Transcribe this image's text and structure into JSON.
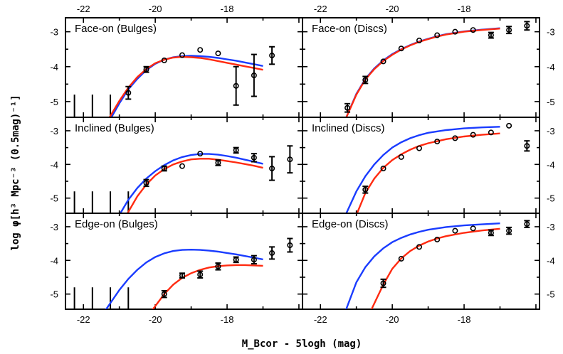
{
  "chart_data": {
    "type": "scatter",
    "xlabel": "M_Bcor - 5logh (mag)",
    "ylabel": "log φ[h³ Mpc⁻³ (0.5mag)⁻¹]",
    "xlim": [
      -22.5,
      -15.9
    ],
    "ylim": [
      -5.45,
      -2.6
    ],
    "x_ticks": [
      -22,
      -20,
      -18
    ],
    "y_ticks": [
      -5,
      -4,
      -3
    ],
    "colors": {
      "model_blue": "#1a3cff",
      "model_red": "#ff2a10"
    },
    "panels": [
      {
        "title": "Face-on (Bulges)",
        "points": [
          {
            "x": -20.75,
            "y": -4.75,
            "err": 0.18
          },
          {
            "x": -20.25,
            "y": -4.08,
            "err": 0.08
          },
          {
            "x": -19.75,
            "y": -3.82,
            "err": 0.05
          },
          {
            "x": -19.25,
            "y": -3.67,
            "err": 0.04
          },
          {
            "x": -18.75,
            "y": -3.52,
            "err": 0.04
          },
          {
            "x": -18.25,
            "y": -3.62,
            "err": 0.06
          },
          {
            "x": -17.75,
            "y": -4.55,
            "err": 0.55
          },
          {
            "x": -17.25,
            "y": -4.25,
            "err": 0.6
          },
          {
            "x": -16.75,
            "y": -3.68,
            "err": 0.25
          }
        ],
        "upper_limits": [
          -22.25,
          -21.75,
          -21.25
        ],
        "blue_curve": [
          [
            -21.25,
            -5.5
          ],
          [
            -21.0,
            -5.05
          ],
          [
            -20.75,
            -4.65
          ],
          [
            -20.5,
            -4.35
          ],
          [
            -20.25,
            -4.1
          ],
          [
            -20.0,
            -3.92
          ],
          [
            -19.75,
            -3.8
          ],
          [
            -19.5,
            -3.73
          ],
          [
            -19.25,
            -3.7
          ],
          [
            -19.0,
            -3.69
          ],
          [
            -18.75,
            -3.7
          ],
          [
            -18.5,
            -3.72
          ],
          [
            -18.25,
            -3.75
          ],
          [
            -18.0,
            -3.79
          ],
          [
            -17.75,
            -3.83
          ],
          [
            -17.5,
            -3.88
          ],
          [
            -17.25,
            -3.93
          ],
          [
            -17.0,
            -3.98
          ]
        ],
        "red_curve": [
          [
            -21.3,
            -5.5
          ],
          [
            -21.0,
            -4.98
          ],
          [
            -20.75,
            -4.6
          ],
          [
            -20.5,
            -4.3
          ],
          [
            -20.25,
            -4.07
          ],
          [
            -20.0,
            -3.9
          ],
          [
            -19.75,
            -3.8
          ],
          [
            -19.5,
            -3.74
          ],
          [
            -19.25,
            -3.72
          ],
          [
            -19.0,
            -3.73
          ],
          [
            -18.75,
            -3.75
          ],
          [
            -18.5,
            -3.79
          ],
          [
            -18.25,
            -3.84
          ],
          [
            -18.0,
            -3.89
          ],
          [
            -17.75,
            -3.94
          ],
          [
            -17.5,
            -3.99
          ],
          [
            -17.25,
            -4.04
          ],
          [
            -17.0,
            -4.09
          ]
        ]
      },
      {
        "title": "Face-on (Discs)",
        "points": [
          {
            "x": -21.25,
            "y": -5.18,
            "err": 0.12
          },
          {
            "x": -20.75,
            "y": -4.38,
            "err": 0.1
          },
          {
            "x": -20.25,
            "y": -3.85,
            "err": 0.06
          },
          {
            "x": -19.75,
            "y": -3.48,
            "err": 0.04
          },
          {
            "x": -19.25,
            "y": -3.25,
            "err": 0.03
          },
          {
            "x": -18.75,
            "y": -3.1,
            "err": 0.03
          },
          {
            "x": -18.25,
            "y": -3.0,
            "err": 0.03
          },
          {
            "x": -17.75,
            "y": -2.95,
            "err": 0.04
          },
          {
            "x": -17.25,
            "y": -3.1,
            "err": 0.08
          },
          {
            "x": -16.75,
            "y": -2.95,
            "err": 0.1
          },
          {
            "x": -16.25,
            "y": -2.83,
            "err": 0.12
          }
        ],
        "upper_limits": [],
        "blue_curve": [
          [
            -21.3,
            -5.5
          ],
          [
            -21.0,
            -4.78
          ],
          [
            -20.75,
            -4.35
          ],
          [
            -20.5,
            -4.05
          ],
          [
            -20.25,
            -3.82
          ],
          [
            -20.0,
            -3.64
          ],
          [
            -19.75,
            -3.5
          ],
          [
            -19.5,
            -3.38
          ],
          [
            -19.25,
            -3.28
          ],
          [
            -19.0,
            -3.2
          ],
          [
            -18.75,
            -3.13
          ],
          [
            -18.5,
            -3.07
          ],
          [
            -18.0,
            -2.99
          ],
          [
            -17.5,
            -2.94
          ],
          [
            -17.0,
            -2.9
          ]
        ],
        "red_curve": [
          [
            -21.3,
            -5.5
          ],
          [
            -21.0,
            -4.8
          ],
          [
            -20.75,
            -4.37
          ],
          [
            -20.5,
            -4.07
          ],
          [
            -20.25,
            -3.84
          ],
          [
            -20.0,
            -3.66
          ],
          [
            -19.75,
            -3.51
          ],
          [
            -19.5,
            -3.39
          ],
          [
            -19.25,
            -3.29
          ],
          [
            -19.0,
            -3.21
          ],
          [
            -18.75,
            -3.14
          ],
          [
            -18.5,
            -3.08
          ],
          [
            -18.0,
            -3.0
          ],
          [
            -17.5,
            -2.95
          ],
          [
            -17.0,
            -2.91
          ]
        ]
      },
      {
        "title": "Inclined (Bulges)",
        "points": [
          {
            "x": -20.25,
            "y": -4.55,
            "err": 0.1
          },
          {
            "x": -19.75,
            "y": -4.12,
            "err": 0.07
          },
          {
            "x": -19.25,
            "y": -4.05,
            "err": 0.06
          },
          {
            "x": -18.75,
            "y": -3.68,
            "err": 0.04
          },
          {
            "x": -18.25,
            "y": -3.95,
            "err": 0.08
          },
          {
            "x": -17.75,
            "y": -3.58,
            "err": 0.08
          },
          {
            "x": -17.25,
            "y": -3.8,
            "err": 0.12
          },
          {
            "x": -16.75,
            "y": -4.12,
            "err": 0.35
          },
          {
            "x": -16.25,
            "y": -3.85,
            "err": 0.4
          }
        ],
        "upper_limits": [
          -22.25,
          -21.75,
          -21.25,
          -20.75
        ],
        "blue_curve": [
          [
            -21.0,
            -5.5
          ],
          [
            -20.75,
            -5.05
          ],
          [
            -20.5,
            -4.7
          ],
          [
            -20.25,
            -4.42
          ],
          [
            -20.0,
            -4.2
          ],
          [
            -19.75,
            -4.02
          ],
          [
            -19.5,
            -3.88
          ],
          [
            -19.25,
            -3.78
          ],
          [
            -19.0,
            -3.72
          ],
          [
            -18.75,
            -3.69
          ],
          [
            -18.5,
            -3.69
          ],
          [
            -18.25,
            -3.71
          ],
          [
            -18.0,
            -3.75
          ],
          [
            -17.75,
            -3.8
          ],
          [
            -17.5,
            -3.86
          ],
          [
            -17.25,
            -3.92
          ],
          [
            -17.0,
            -3.98
          ]
        ],
        "red_curve": [
          [
            -20.8,
            -5.5
          ],
          [
            -20.5,
            -4.95
          ],
          [
            -20.25,
            -4.6
          ],
          [
            -20.0,
            -4.33
          ],
          [
            -19.75,
            -4.14
          ],
          [
            -19.5,
            -4.0
          ],
          [
            -19.25,
            -3.91
          ],
          [
            -19.0,
            -3.85
          ],
          [
            -18.75,
            -3.83
          ],
          [
            -18.5,
            -3.83
          ],
          [
            -18.25,
            -3.86
          ],
          [
            -18.0,
            -3.9
          ],
          [
            -17.75,
            -3.94
          ],
          [
            -17.5,
            -3.99
          ],
          [
            -17.25,
            -4.04
          ],
          [
            -17.0,
            -4.1
          ]
        ]
      },
      {
        "title": "Inclined (Discs)",
        "points": [
          {
            "x": -20.75,
            "y": -4.75,
            "err": 0.1
          },
          {
            "x": -20.25,
            "y": -4.12,
            "err": 0.06
          },
          {
            "x": -19.75,
            "y": -3.78,
            "err": 0.04
          },
          {
            "x": -19.25,
            "y": -3.52,
            "err": 0.03
          },
          {
            "x": -18.75,
            "y": -3.32,
            "err": 0.03
          },
          {
            "x": -18.25,
            "y": -3.22,
            "err": 0.03
          },
          {
            "x": -17.75,
            "y": -3.12,
            "err": 0.04
          },
          {
            "x": -17.25,
            "y": -3.05,
            "err": 0.05
          },
          {
            "x": -16.75,
            "y": -2.85,
            "err": 0.06
          },
          {
            "x": -16.25,
            "y": -3.45,
            "err": 0.15
          }
        ],
        "upper_limits": [],
        "blue_curve": [
          [
            -21.3,
            -5.5
          ],
          [
            -21.0,
            -4.8
          ],
          [
            -20.75,
            -4.35
          ],
          [
            -20.5,
            -4.0
          ],
          [
            -20.25,
            -3.72
          ],
          [
            -20.0,
            -3.5
          ],
          [
            -19.75,
            -3.34
          ],
          [
            -19.5,
            -3.22
          ],
          [
            -19.25,
            -3.13
          ],
          [
            -19.0,
            -3.06
          ],
          [
            -18.5,
            -2.98
          ],
          [
            -18.0,
            -2.93
          ],
          [
            -17.5,
            -2.9
          ],
          [
            -17.0,
            -2.88
          ]
        ],
        "red_curve": [
          [
            -21.0,
            -5.5
          ],
          [
            -20.75,
            -4.85
          ],
          [
            -20.5,
            -4.42
          ],
          [
            -20.25,
            -4.1
          ],
          [
            -20.0,
            -3.87
          ],
          [
            -19.75,
            -3.7
          ],
          [
            -19.5,
            -3.56
          ],
          [
            -19.25,
            -3.45
          ],
          [
            -19.0,
            -3.37
          ],
          [
            -18.5,
            -3.25
          ],
          [
            -18.0,
            -3.17
          ],
          [
            -17.5,
            -3.12
          ],
          [
            -17.0,
            -3.08
          ]
        ]
      },
      {
        "title": "Edge-on (Bulges)",
        "points": [
          {
            "x": -19.75,
            "y": -5.0,
            "err": 0.1
          },
          {
            "x": -19.25,
            "y": -4.45,
            "err": 0.07
          },
          {
            "x": -18.75,
            "y": -4.42,
            "err": 0.1
          },
          {
            "x": -18.25,
            "y": -4.18,
            "err": 0.1
          },
          {
            "x": -17.75,
            "y": -3.98,
            "err": 0.08
          },
          {
            "x": -17.25,
            "y": -3.98,
            "err": 0.12
          },
          {
            "x": -16.75,
            "y": -3.78,
            "err": 0.18
          },
          {
            "x": -16.25,
            "y": -3.55,
            "err": 0.2
          }
        ],
        "upper_limits": [
          -22.25,
          -21.75,
          -21.25,
          -20.75
        ],
        "blue_curve": [
          [
            -21.4,
            -5.5
          ],
          [
            -21.0,
            -4.88
          ],
          [
            -20.75,
            -4.55
          ],
          [
            -20.5,
            -4.28
          ],
          [
            -20.25,
            -4.06
          ],
          [
            -20.0,
            -3.9
          ],
          [
            -19.75,
            -3.79
          ],
          [
            -19.5,
            -3.72
          ],
          [
            -19.25,
            -3.69
          ],
          [
            -19.0,
            -3.68
          ],
          [
            -18.75,
            -3.69
          ],
          [
            -18.5,
            -3.71
          ],
          [
            -18.25,
            -3.74
          ],
          [
            -18.0,
            -3.78
          ],
          [
            -17.75,
            -3.82
          ],
          [
            -17.5,
            -3.87
          ],
          [
            -17.25,
            -3.92
          ],
          [
            -17.0,
            -3.97
          ]
        ],
        "red_curve": [
          [
            -20.1,
            -5.5
          ],
          [
            -19.75,
            -5.0
          ],
          [
            -19.5,
            -4.72
          ],
          [
            -19.25,
            -4.52
          ],
          [
            -19.0,
            -4.38
          ],
          [
            -18.75,
            -4.28
          ],
          [
            -18.5,
            -4.21
          ],
          [
            -18.25,
            -4.17
          ],
          [
            -18.0,
            -4.15
          ],
          [
            -17.75,
            -4.14
          ],
          [
            -17.5,
            -4.14
          ],
          [
            -17.25,
            -4.15
          ],
          [
            -17.0,
            -4.16
          ]
        ]
      },
      {
        "title": "Edge-on (Discs)",
        "points": [
          {
            "x": -20.25,
            "y": -4.68,
            "err": 0.12
          },
          {
            "x": -19.75,
            "y": -3.95,
            "err": 0.05
          },
          {
            "x": -19.25,
            "y": -3.6,
            "err": 0.04
          },
          {
            "x": -18.75,
            "y": -3.38,
            "err": 0.03
          },
          {
            "x": -18.25,
            "y": -3.12,
            "err": 0.03
          },
          {
            "x": -17.75,
            "y": -3.05,
            "err": 0.04
          },
          {
            "x": -17.25,
            "y": -3.18,
            "err": 0.08
          },
          {
            "x": -16.75,
            "y": -3.12,
            "err": 0.1
          },
          {
            "x": -16.25,
            "y": -2.92,
            "err": 0.1
          }
        ],
        "upper_limits": [],
        "blue_curve": [
          [
            -21.3,
            -5.5
          ],
          [
            -21.0,
            -4.65
          ],
          [
            -20.75,
            -4.2
          ],
          [
            -20.5,
            -3.88
          ],
          [
            -20.25,
            -3.64
          ],
          [
            -20.0,
            -3.46
          ],
          [
            -19.75,
            -3.33
          ],
          [
            -19.5,
            -3.23
          ],
          [
            -19.25,
            -3.15
          ],
          [
            -19.0,
            -3.09
          ],
          [
            -18.5,
            -3.01
          ],
          [
            -18.0,
            -2.96
          ],
          [
            -17.5,
            -2.93
          ],
          [
            -17.0,
            -2.9
          ]
        ],
        "red_curve": [
          [
            -20.6,
            -5.5
          ],
          [
            -20.25,
            -4.72
          ],
          [
            -20.0,
            -4.25
          ],
          [
            -19.75,
            -3.94
          ],
          [
            -19.5,
            -3.72
          ],
          [
            -19.25,
            -3.56
          ],
          [
            -19.0,
            -3.44
          ],
          [
            -18.75,
            -3.35
          ],
          [
            -18.5,
            -3.28
          ],
          [
            -18.0,
            -3.18
          ],
          [
            -17.5,
            -3.11
          ],
          [
            -17.0,
            -3.06
          ]
        ]
      }
    ]
  }
}
